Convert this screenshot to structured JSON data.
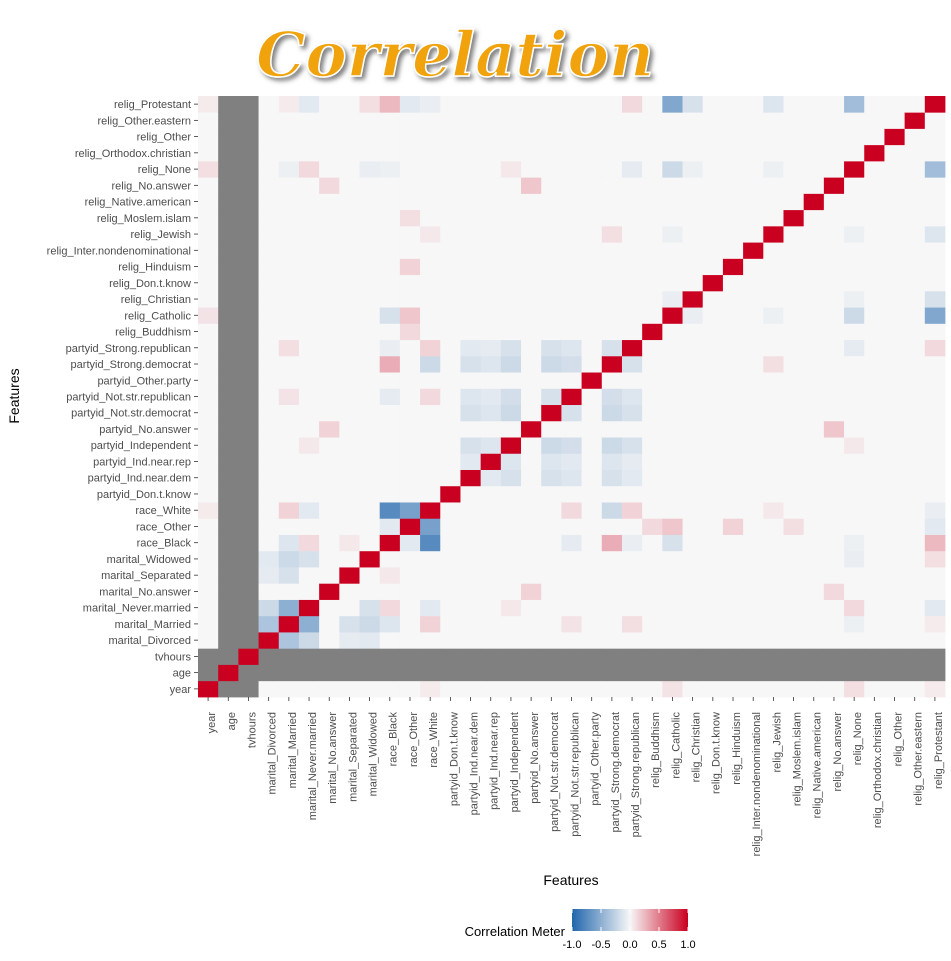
{
  "chart_data": {
    "type": "heatmap",
    "title": "Correlation",
    "xlabel": "Features",
    "ylabel": "Features",
    "features": [
      "year",
      "age",
      "tvhours",
      "marital_Divorced",
      "marital_Married",
      "marital_Never.married",
      "marital_No.answer",
      "marital_Separated",
      "marital_Widowed",
      "race_Black",
      "race_Other",
      "race_White",
      "partyid_Don.t.know",
      "partyid_Ind.near.dem",
      "partyid_Ind.near.rep",
      "partyid_Independent",
      "partyid_No.answer",
      "partyid_Not.str.democrat",
      "partyid_Not.str.republican",
      "partyid_Other.party",
      "partyid_Strong.democrat",
      "partyid_Strong.republican",
      "relig_Buddhism",
      "relig_Catholic",
      "relig_Christian",
      "relig_Don.t.know",
      "relig_Hinduism",
      "relig_Inter.nondenominational",
      "relig_Jewish",
      "relig_Moslem.islam",
      "relig_Native.american",
      "relig_No.answer",
      "relig_None",
      "relig_Orthodox.christian",
      "relig_Other",
      "relig_Other.eastern",
      "relig_Protestant"
    ],
    "missing_features": [
      "age",
      "tvhours"
    ],
    "diagonal": 1.0,
    "correlations": [
      [
        "year",
        "relig_None",
        0.1
      ],
      [
        "year",
        "relig_Catholic",
        0.08
      ],
      [
        "year",
        "race_White",
        0.05
      ],
      [
        "year",
        "relig_Protestant",
        0.05
      ],
      [
        "marital_Divorced",
        "marital_Married",
        -0.35
      ],
      [
        "marital_Divorced",
        "marital_Never.married",
        -0.2
      ],
      [
        "marital_Divorced",
        "marital_Widowed",
        -0.1
      ],
      [
        "marital_Divorced",
        "marital_Separated",
        -0.08
      ],
      [
        "marital_Married",
        "marital_Never.married",
        -0.5
      ],
      [
        "marital_Married",
        "marital_Widowed",
        -0.2
      ],
      [
        "marital_Married",
        "marital_Separated",
        -0.15
      ],
      [
        "marital_Married",
        "race_White",
        0.15
      ],
      [
        "marital_Married",
        "race_Black",
        -0.12
      ],
      [
        "marital_Married",
        "relig_Protestant",
        0.05
      ],
      [
        "marital_Married",
        "relig_None",
        -0.05
      ],
      [
        "marital_Married",
        "partyid_Strong.republican",
        0.1
      ],
      [
        "marital_Married",
        "partyid_Not.str.republican",
        0.08
      ],
      [
        "marital_Never.married",
        "marital_Widowed",
        -0.15
      ],
      [
        "marital_Never.married",
        "race_Black",
        0.12
      ],
      [
        "marital_Never.married",
        "race_White",
        -0.1
      ],
      [
        "marital_Never.married",
        "relig_None",
        0.12
      ],
      [
        "marital_Never.married",
        "relig_Protestant",
        -0.1
      ],
      [
        "marital_Never.married",
        "partyid_Independent",
        0.06
      ],
      [
        "marital_No.answer",
        "partyid_No.answer",
        0.15
      ],
      [
        "marital_No.answer",
        "relig_No.answer",
        0.12
      ],
      [
        "marital_Widowed",
        "relig_Protestant",
        0.1
      ],
      [
        "marital_Widowed",
        "relig_None",
        -0.06
      ],
      [
        "marital_Separated",
        "race_Black",
        0.06
      ],
      [
        "race_Black",
        "race_White",
        -0.75
      ],
      [
        "race_Black",
        "race_Other",
        -0.1
      ],
      [
        "race_Black",
        "partyid_Strong.democrat",
        0.3
      ],
      [
        "race_Black",
        "partyid_Strong.republican",
        -0.06
      ],
      [
        "race_Black",
        "partyid_Not.str.republican",
        -0.08
      ],
      [
        "race_Black",
        "relig_Protestant",
        0.25
      ],
      [
        "race_Black",
        "relig_Catholic",
        -0.15
      ],
      [
        "race_Black",
        "relig_None",
        -0.05
      ],
      [
        "race_Other",
        "race_White",
        -0.6
      ],
      [
        "race_Other",
        "relig_Catholic",
        0.2
      ],
      [
        "race_Other",
        "relig_Hinduism",
        0.15
      ],
      [
        "race_Other",
        "relig_Buddhism",
        0.12
      ],
      [
        "race_Other",
        "relig_Moslem.islam",
        0.1
      ],
      [
        "race_Other",
        "relig_Protestant",
        -0.1
      ],
      [
        "race_White",
        "partyid_Strong.democrat",
        -0.2
      ],
      [
        "race_White",
        "partyid_Strong.republican",
        0.15
      ],
      [
        "race_White",
        "partyid_Not.str.republican",
        0.12
      ],
      [
        "race_White",
        "relig_Jewish",
        0.06
      ],
      [
        "race_White",
        "relig_Protestant",
        -0.06
      ],
      [
        "partyid_Ind.near.dem",
        "partyid_Independent",
        -0.15
      ],
      [
        "partyid_Ind.near.dem",
        "partyid_Not.str.democrat",
        -0.15
      ],
      [
        "partyid_Ind.near.dem",
        "partyid_Strong.democrat",
        -0.15
      ],
      [
        "partyid_Ind.near.dem",
        "partyid_Not.str.republican",
        -0.12
      ],
      [
        "partyid_Ind.near.dem",
        "partyid_Strong.republican",
        -0.1
      ],
      [
        "partyid_Ind.near.dem",
        "partyid_Ind.near.rep",
        -0.1
      ],
      [
        "partyid_Ind.near.rep",
        "partyid_Independent",
        -0.12
      ],
      [
        "partyid_Ind.near.rep",
        "partyid_Not.str.democrat",
        -0.12
      ],
      [
        "partyid_Ind.near.rep",
        "partyid_Strong.democrat",
        -0.12
      ],
      [
        "partyid_Ind.near.rep",
        "partyid_Not.str.republican",
        -0.1
      ],
      [
        "partyid_Ind.near.rep",
        "partyid_Strong.republican",
        -0.08
      ],
      [
        "partyid_Independent",
        "partyid_Not.str.democrat",
        -0.2
      ],
      [
        "partyid_Independent",
        "partyid_Strong.democrat",
        -0.2
      ],
      [
        "partyid_Independent",
        "partyid_Not.str.republican",
        -0.17
      ],
      [
        "partyid_Independent",
        "partyid_Strong.republican",
        -0.15
      ],
      [
        "partyid_Not.str.democrat",
        "partyid_Strong.democrat",
        -0.2
      ],
      [
        "partyid_Not.str.democrat",
        "partyid_Not.str.republican",
        -0.15
      ],
      [
        "partyid_Not.str.democrat",
        "partyid_Strong.republican",
        -0.15
      ],
      [
        "partyid_Not.str.republican",
        "partyid_Strong.democrat",
        -0.17
      ],
      [
        "partyid_Not.str.republican",
        "partyid_Strong.republican",
        -0.12
      ],
      [
        "partyid_Strong.democrat",
        "partyid_Strong.republican",
        -0.15
      ],
      [
        "partyid_Strong.democrat",
        "relig_Jewish",
        0.1
      ],
      [
        "partyid_Strong.republican",
        "relig_Protestant",
        0.12
      ],
      [
        "partyid_Strong.republican",
        "relig_None",
        -0.08
      ],
      [
        "partyid_No.answer",
        "relig_No.answer",
        0.2
      ],
      [
        "partyid_Independent",
        "relig_None",
        0.06
      ],
      [
        "relig_Catholic",
        "relig_Protestant",
        -0.55
      ],
      [
        "relig_None",
        "relig_Protestant",
        -0.4
      ],
      [
        "relig_Christian",
        "relig_Protestant",
        -0.15
      ],
      [
        "relig_Jewish",
        "relig_Protestant",
        -0.12
      ],
      [
        "relig_Catholic",
        "relig_None",
        -0.2
      ],
      [
        "relig_Christian",
        "relig_None",
        -0.05
      ],
      [
        "relig_Jewish",
        "relig_None",
        -0.05
      ],
      [
        "relig_Catholic",
        "relig_Jewish",
        -0.05
      ],
      [
        "relig_Catholic",
        "relig_Christian",
        -0.06
      ]
    ],
    "legend": {
      "title": "Correlation Meter",
      "ticks": [
        -1.0,
        -0.5,
        0.0,
        0.5,
        1.0
      ],
      "tick_labels": [
        "-1.0",
        "-0.5",
        "0.0",
        "0.5",
        "1.0"
      ],
      "low_color": "#2166ac",
      "mid_color": "#f7f7f7",
      "high_color": "#ca0020",
      "na_color": "#808080",
      "position": "bottom"
    },
    "title_color": "#f0a30a"
  }
}
